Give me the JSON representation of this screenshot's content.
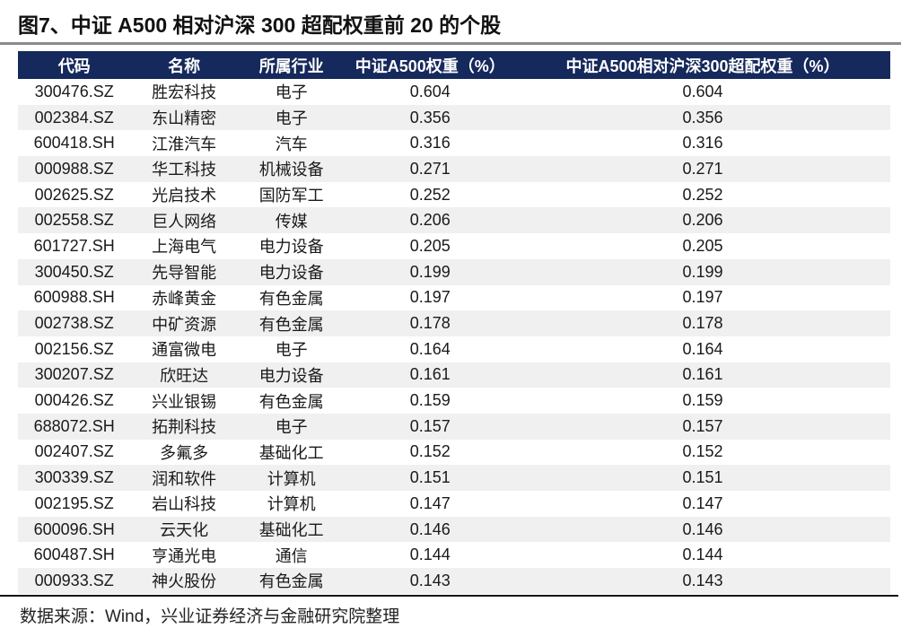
{
  "figure": {
    "title": "图7、中证 A500 相对沪深 300 超配权重前 20 的个股"
  },
  "table": {
    "headers": [
      "代码",
      "名称",
      "所属行业",
      "中证A500权重（%）",
      "中证A500相对沪深300超配权重（%）"
    ],
    "rows": [
      [
        "300476.SZ",
        "胜宏科技",
        "电子",
        "0.604",
        "0.604"
      ],
      [
        "002384.SZ",
        "东山精密",
        "电子",
        "0.356",
        "0.356"
      ],
      [
        "600418.SH",
        "江淮汽车",
        "汽车",
        "0.316",
        "0.316"
      ],
      [
        "000988.SZ",
        "华工科技",
        "机械设备",
        "0.271",
        "0.271"
      ],
      [
        "002625.SZ",
        "光启技术",
        "国防军工",
        "0.252",
        "0.252"
      ],
      [
        "002558.SZ",
        "巨人网络",
        "传媒",
        "0.206",
        "0.206"
      ],
      [
        "601727.SH",
        "上海电气",
        "电力设备",
        "0.205",
        "0.205"
      ],
      [
        "300450.SZ",
        "先导智能",
        "电力设备",
        "0.199",
        "0.199"
      ],
      [
        "600988.SH",
        "赤峰黄金",
        "有色金属",
        "0.197",
        "0.197"
      ],
      [
        "002738.SZ",
        "中矿资源",
        "有色金属",
        "0.178",
        "0.178"
      ],
      [
        "002156.SZ",
        "通富微电",
        "电子",
        "0.164",
        "0.164"
      ],
      [
        "300207.SZ",
        "欣旺达",
        "电力设备",
        "0.161",
        "0.161"
      ],
      [
        "000426.SZ",
        "兴业银锡",
        "有色金属",
        "0.159",
        "0.159"
      ],
      [
        "688072.SH",
        "拓荆科技",
        "电子",
        "0.157",
        "0.157"
      ],
      [
        "002407.SZ",
        "多氟多",
        "基础化工",
        "0.152",
        "0.152"
      ],
      [
        "300339.SZ",
        "润和软件",
        "计算机",
        "0.151",
        "0.151"
      ],
      [
        "002195.SZ",
        "岩山科技",
        "计算机",
        "0.147",
        "0.147"
      ],
      [
        "600096.SH",
        "云天化",
        "基础化工",
        "0.146",
        "0.146"
      ],
      [
        "600487.SH",
        "亨通光电",
        "通信",
        "0.144",
        "0.144"
      ],
      [
        "000933.SZ",
        "神火股份",
        "有色金属",
        "0.143",
        "0.143"
      ]
    ]
  },
  "footer": {
    "source": "数据来源：Wind，兴业证券经济与金融研究院整理"
  },
  "colors": {
    "header_bg": "#16295c",
    "header_text": "#ffffff",
    "stripe": "#f0f0f0",
    "title_divider": "#8b8b8b",
    "bottom_rule": "#141414",
    "text": "#1a1a1a"
  }
}
